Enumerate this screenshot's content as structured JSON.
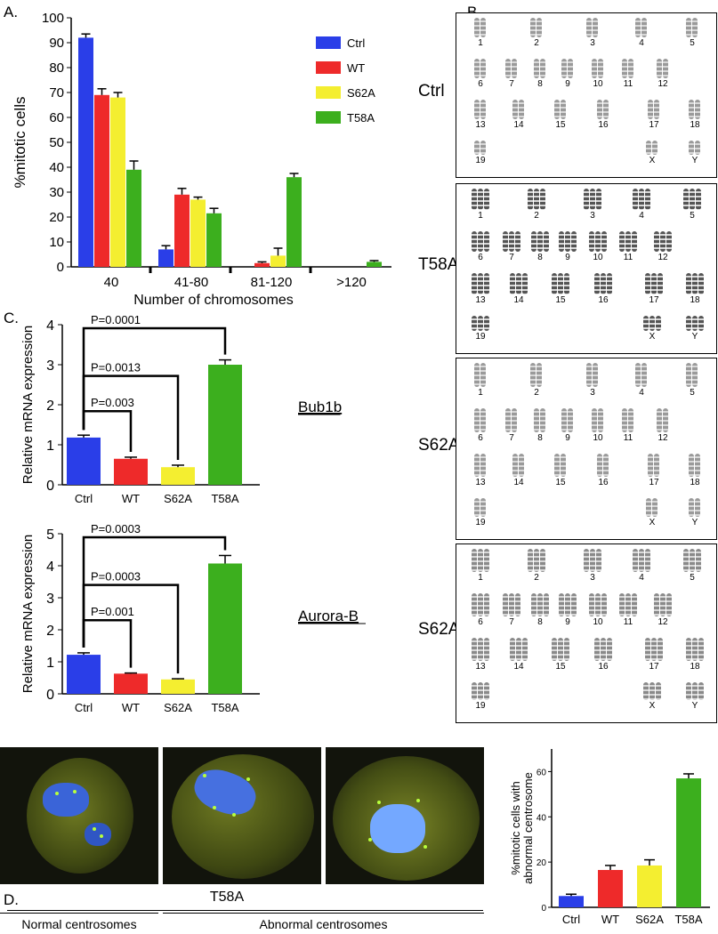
{
  "panel_labels": {
    "a": "A.",
    "b": "B.",
    "c": "C.",
    "d": "D."
  },
  "colors": {
    "ctrl": "#2a3ee8",
    "wt": "#ee2a2a",
    "s62a": "#f4ee30",
    "t58a": "#3caf1e"
  },
  "chart_data": [
    {
      "type": "bar",
      "panel": "A.",
      "xlabel": "Number of chromosomes",
      "ylabel": "%mitotic cells",
      "ylim": [
        0,
        100
      ],
      "yticks": [
        0,
        10,
        20,
        30,
        40,
        50,
        60,
        70,
        80,
        90,
        100
      ],
      "categories": [
        "40",
        "41-80",
        "81-120",
        ">120"
      ],
      "legend_position": "top-right",
      "series": [
        {
          "name": "Ctrl",
          "color": "#2a3ee8",
          "values": [
            92,
            7,
            0,
            0
          ],
          "errors": [
            1.5,
            1.5,
            0,
            0
          ]
        },
        {
          "name": "WT",
          "color": "#ee2a2a",
          "values": [
            69,
            29,
            1.5,
            0
          ],
          "errors": [
            2.5,
            2.5,
            0.5,
            0
          ]
        },
        {
          "name": "S62A",
          "color": "#f4ee30",
          "values": [
            68,
            27,
            4.5,
            0
          ],
          "errors": [
            2,
            1,
            3,
            0
          ]
        },
        {
          "name": "T58A",
          "color": "#3caf1e",
          "values": [
            39,
            21.5,
            36,
            2
          ],
          "errors": [
            3.5,
            2,
            1.5,
            0.5
          ]
        }
      ]
    },
    {
      "type": "bar",
      "panel": "C.",
      "gene": "Bub1b",
      "ylabel": "Relative mRNA expression",
      "ylim": [
        0,
        4
      ],
      "yticks": [
        0,
        1,
        2,
        3,
        4
      ],
      "categories": [
        "Ctrl",
        "WT",
        "S62A",
        "T58A"
      ],
      "colors": [
        "#2a3ee8",
        "#ee2a2a",
        "#f4ee30",
        "#3caf1e"
      ],
      "values": [
        1.18,
        0.65,
        0.44,
        3.0
      ],
      "errors": [
        0.06,
        0.04,
        0.05,
        0.12
      ],
      "annotations": [
        {
          "text": "P=0.003",
          "to": 1
        },
        {
          "text": "P=0.0013",
          "to": 2
        },
        {
          "text": "P=0.0001",
          "to": 3
        }
      ]
    },
    {
      "type": "bar",
      "panel": "C.",
      "gene": "Aurora-B",
      "ylabel": "Relative mRNA expression",
      "ylim": [
        0,
        5
      ],
      "yticks": [
        0,
        1,
        2,
        3,
        4,
        5
      ],
      "categories": [
        "Ctrl",
        "WT",
        "S62A",
        "T58A"
      ],
      "colors": [
        "#2a3ee8",
        "#ee2a2a",
        "#f4ee30",
        "#3caf1e"
      ],
      "values": [
        1.22,
        0.63,
        0.45,
        4.07
      ],
      "errors": [
        0.06,
        0.02,
        0.02,
        0.25
      ],
      "annotations": [
        {
          "text": "P=0.001",
          "to": 1
        },
        {
          "text": "P=0.0003",
          "to": 2
        },
        {
          "text": "P=0.0003",
          "to": 3
        }
      ]
    },
    {
      "type": "bar",
      "panel": "D.",
      "ylabel_lines": [
        "%mitotic cells with",
        "abnormal centrosome"
      ],
      "ylim": [
        0,
        70
      ],
      "yticks": [
        0,
        20,
        40,
        60
      ],
      "categories": [
        "Ctrl",
        "WT",
        "S62A",
        "T58A"
      ],
      "colors": [
        "#2a3ee8",
        "#ee2a2a",
        "#f4ee30",
        "#3caf1e"
      ],
      "values": [
        5,
        16.5,
        18.5,
        57
      ],
      "errors": [
        0.8,
        2,
        2.5,
        2
      ]
    }
  ],
  "karyotypes": [
    {
      "label": "Ctrl",
      "rows": [
        [
          "1",
          "2",
          "3",
          "4",
          "5"
        ],
        [
          "6",
          "7",
          "8",
          "9",
          "10",
          "11",
          "12"
        ],
        [
          "13",
          "14",
          "15",
          "16",
          "17",
          "18"
        ],
        [
          "19",
          "X",
          "Y"
        ]
      ]
    },
    {
      "label": "T58A",
      "rows": [
        [
          "1",
          "2",
          "3",
          "4",
          "5"
        ],
        [
          "6",
          "7",
          "8",
          "9",
          "10",
          "11",
          "12"
        ],
        [
          "13",
          "14",
          "15",
          "16",
          "17",
          "18"
        ],
        [
          "19",
          "X",
          "Y"
        ]
      ]
    },
    {
      "label": "S62A",
      "rows": [
        [
          "1",
          "2",
          "3",
          "4",
          "5"
        ],
        [
          "6",
          "7",
          "8",
          "9",
          "10",
          "11",
          "12"
        ],
        [
          "13",
          "14",
          "15",
          "16",
          "17",
          "18"
        ],
        [
          "19",
          "X",
          "Y"
        ]
      ]
    },
    {
      "label": "S62A",
      "rows": [
        [
          "1",
          "2",
          "3",
          "4",
          "5"
        ],
        [
          "6",
          "7",
          "8",
          "9",
          "10",
          "11",
          "12"
        ],
        [
          "13",
          "14",
          "15",
          "16",
          "17",
          "18"
        ],
        [
          "19",
          "X",
          "Y"
        ]
      ]
    }
  ],
  "micro": {
    "title": "T58A",
    "caption_normal": "Normal centrosomes",
    "caption_abnormal": "Abnormal centrosomes"
  }
}
